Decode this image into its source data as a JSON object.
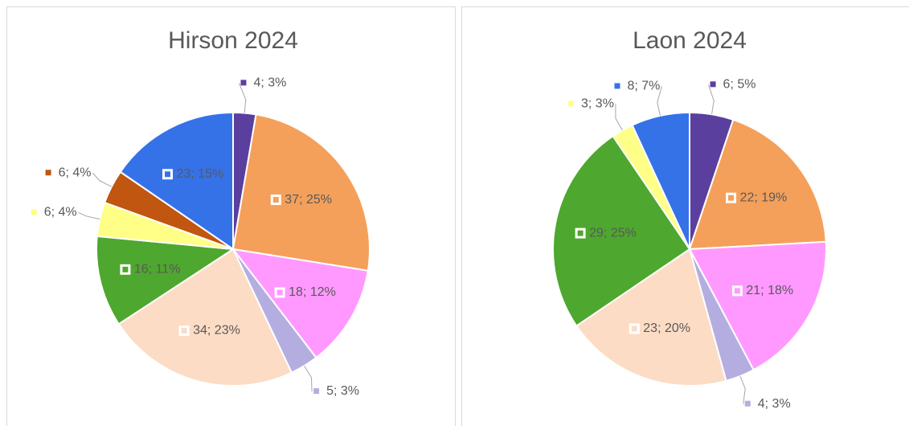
{
  "chart_data": [
    {
      "type": "pie",
      "title": "Hirson 2024",
      "values": [
        4,
        37,
        18,
        5,
        34,
        16,
        6,
        6,
        23
      ],
      "value_labels": [
        "4; 3%",
        "37; 25%",
        "18; 12%",
        "5; 3%",
        "34; 23%",
        "16; 11%",
        "6; 4%",
        "6; 4%",
        "23; 15%"
      ],
      "colors": [
        "#5b3f9e",
        "#f4a05a",
        "#ff99ff",
        "#b4aee0",
        "#fcdcc5",
        "#4ea72e",
        "#ffff88",
        "#c0560f",
        "#3572e8"
      ]
    },
    {
      "type": "pie",
      "title": "Laon 2024",
      "values": [
        6,
        22,
        21,
        4,
        23,
        29,
        3,
        8
      ],
      "value_labels": [
        "6; 5%",
        "22; 19%",
        "21; 18%",
        "4; 3%",
        "23; 20%",
        "29; 25%",
        "3; 3%",
        "8; 7%"
      ],
      "colors": [
        "#5b3f9e",
        "#f4a05a",
        "#ff99ff",
        "#b4aee0",
        "#fcdcc5",
        "#4ea72e",
        "#ffff88",
        "#3572e8"
      ]
    }
  ]
}
